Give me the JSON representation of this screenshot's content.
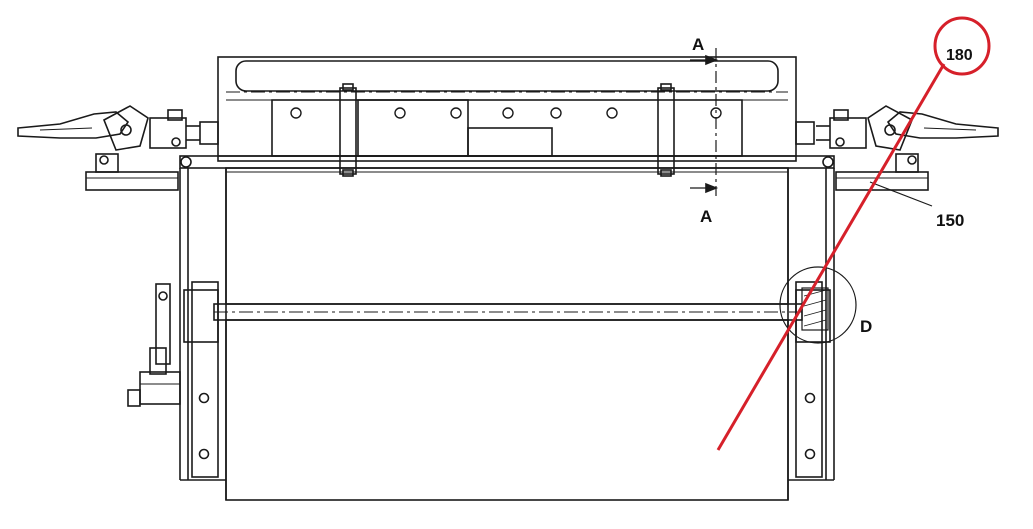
{
  "labels": {
    "section_top": "A",
    "section_bottom": "A",
    "callout_150": "150",
    "detail": "D",
    "highlight": "180"
  },
  "colors": {
    "line": "#1a1a1a",
    "highlight": "#d6202a",
    "background": "#ffffff"
  }
}
